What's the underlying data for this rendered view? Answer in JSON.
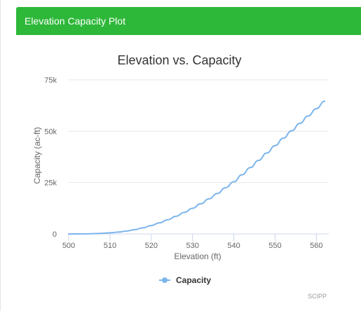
{
  "panel": {
    "title": "Elevation Capacity Plot",
    "header_color": "#2eb83a"
  },
  "chart_data": {
    "type": "line",
    "title": "Elevation vs. Capacity",
    "xlabel": "Elevation (ft)",
    "ylabel": "Capacity (ac-ft)",
    "xlim": [
      500,
      563
    ],
    "ylim": [
      0,
      75000
    ],
    "x_ticks": [
      500,
      510,
      520,
      530,
      540,
      550,
      560
    ],
    "x_tick_labels": [
      "500",
      "510",
      "520",
      "530",
      "540",
      "550",
      "560"
    ],
    "y_ticks": [
      0,
      25000,
      50000,
      75000
    ],
    "y_tick_labels": [
      "0",
      "25k",
      "50k",
      "75k"
    ],
    "grid": "horizontal",
    "legend_position": "bottom-center",
    "series": [
      {
        "name": "Capacity",
        "color": "#7cb5ec",
        "x": [
          500,
          502,
          504,
          506,
          508,
          510,
          512,
          514,
          516,
          518,
          520,
          522,
          524,
          526,
          528,
          530,
          532,
          534,
          536,
          538,
          540,
          542,
          544,
          546,
          548,
          550,
          552,
          554,
          556,
          558,
          560,
          562
        ],
        "y": [
          0,
          20,
          60,
          150,
          300,
          550,
          900,
          1400,
          2100,
          3000,
          4100,
          5400,
          6900,
          8600,
          10500,
          12500,
          14700,
          17100,
          19700,
          22500,
          25400,
          28800,
          32300,
          35800,
          39400,
          43000,
          46600,
          50200,
          53800,
          57400,
          61000,
          64600
        ]
      }
    ],
    "credits": "SCIPP"
  }
}
